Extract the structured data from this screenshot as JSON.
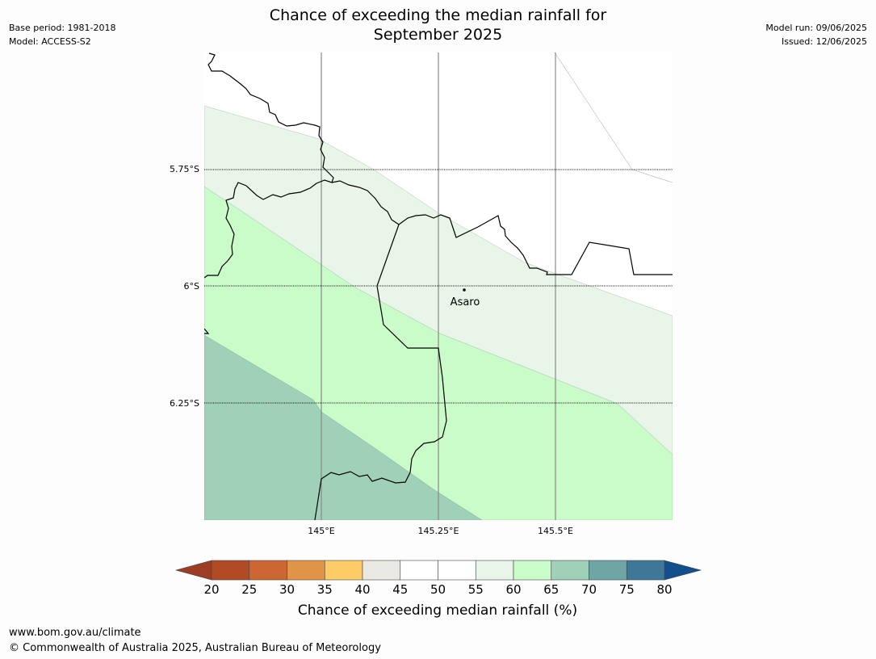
{
  "header": {
    "title_line1": "Chance of exceeding the median rainfall for",
    "title_line2": "September 2025",
    "base_period": "Base period: 1981-2018",
    "model": "Model: ACCESS-S2",
    "model_run": "Model run: 09/06/2025",
    "issued": "Issued: 12/06/2025"
  },
  "map": {
    "lat_labels": [
      "5.75°S",
      "6°S",
      "6.25°S"
    ],
    "lon_labels": [
      "145°E",
      "145.25°E",
      "145.5°E"
    ],
    "place_label": "Asaro",
    "region_colors": {
      "c60_65": "#c9fcc9",
      "c55_60": "#e8f5e8",
      "c65_70": "#9fd1b9",
      "c50_55": "#ffffff"
    }
  },
  "colorbar": {
    "title": "Chance of exceeding median rainfall (%)",
    "ticks": [
      "20",
      "25",
      "30",
      "35",
      "40",
      "45",
      "50",
      "55",
      "60",
      "65",
      "70",
      "75",
      "80"
    ],
    "low_extend_color": "#9c3d24",
    "high_extend_color": "#124f8c",
    "colors": [
      "#b34a26",
      "#cc6633",
      "#e09448",
      "#fdcc66",
      "#ebe9e4",
      "#ffffff",
      "#ffffff",
      "#e8f5e8",
      "#c9fcc9",
      "#9fd1b9",
      "#6ea6a6",
      "#3f7799"
    ]
  },
  "footer": {
    "url": "www.bom.gov.au/climate",
    "copyright": "© Commonwealth of Australia 2025, Australian Bureau of Meteorology"
  }
}
